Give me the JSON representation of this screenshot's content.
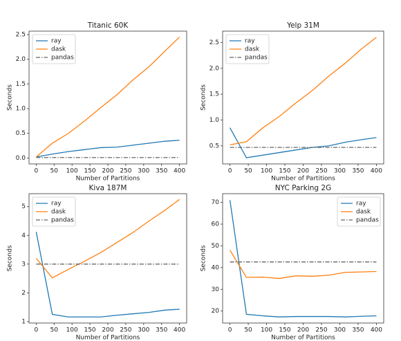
{
  "chart_data": [
    {
      "type": "line",
      "title": "Titanic 60K",
      "xlabel": "Number of Partitions",
      "ylabel": "Seconds",
      "legend": "upper left",
      "x": [
        0,
        45,
        90,
        135,
        180,
        225,
        270,
        315,
        360,
        400
      ],
      "xlim": [
        -20,
        420
      ],
      "xticks": [
        0,
        50,
        100,
        150,
        200,
        250,
        300,
        350,
        400
      ],
      "ylim": [
        -0.12,
        2.57
      ],
      "yticks": [
        {
          "value": 0,
          "label": "0.0"
        },
        {
          "value": 0.5,
          "label": "0.5"
        },
        {
          "value": 1,
          "label": "1.0"
        },
        {
          "value": 1.5,
          "label": "1.5"
        },
        {
          "value": 2,
          "label": "2.0"
        },
        {
          "value": 2.5,
          "label": "2.5"
        }
      ],
      "series": [
        {
          "name": "ray",
          "color": "#1f77b4",
          "linestyle": "solid",
          "values": [
            0.02,
            0.08,
            0.13,
            0.17,
            0.21,
            0.22,
            0.26,
            0.3,
            0.34,
            0.36
          ]
        },
        {
          "name": "dask",
          "color": "#ff7f0e",
          "linestyle": "solid",
          "values": [
            0.02,
            0.3,
            0.5,
            0.75,
            1.02,
            1.28,
            1.58,
            1.85,
            2.17,
            2.45
          ]
        },
        {
          "name": "pandas",
          "color": "#666666",
          "linestyle": "dashdot",
          "values": [
            0.01,
            0.01,
            0.01,
            0.01,
            0.01,
            0.01,
            0.01,
            0.01,
            0.01,
            0.01
          ]
        }
      ]
    },
    {
      "type": "line",
      "title": "Yelp 31M",
      "xlabel": "Number of Partitions",
      "ylabel": "Seconds",
      "legend": "upper left",
      "x": [
        0,
        45,
        90,
        135,
        180,
        225,
        270,
        315,
        360,
        400
      ],
      "xlim": [
        -20,
        420
      ],
      "xticks": [
        0,
        50,
        100,
        150,
        200,
        250,
        300,
        350,
        400
      ],
      "ylim": [
        0.15,
        2.72
      ],
      "yticks": [
        0.5,
        {
          "value": 1,
          "label": "1.0"
        },
        1.5,
        {
          "value": 2,
          "label": "2.0"
        },
        2.5
      ],
      "series": [
        {
          "name": "ray",
          "color": "#1f77b4",
          "linestyle": "solid",
          "values": [
            0.85,
            0.27,
            0.32,
            0.37,
            0.42,
            0.47,
            0.5,
            0.57,
            0.62,
            0.66
          ]
        },
        {
          "name": "dask",
          "color": "#ff7f0e",
          "linestyle": "solid",
          "values": [
            0.52,
            0.58,
            0.85,
            1.07,
            1.33,
            1.57,
            1.85,
            2.1,
            2.38,
            2.6
          ]
        },
        {
          "name": "pandas",
          "color": "#666666",
          "linestyle": "dashdot",
          "values": [
            0.47,
            0.47,
            0.47,
            0.47,
            0.47,
            0.47,
            0.47,
            0.47,
            0.47,
            0.47
          ]
        }
      ]
    },
    {
      "type": "line",
      "title": "Kiva 187M",
      "xlabel": "Number of Partitions",
      "ylabel": "Seconds",
      "legend": "upper left",
      "x": [
        0,
        45,
        90,
        135,
        180,
        225,
        270,
        315,
        360,
        400
      ],
      "xlim": [
        -20,
        420
      ],
      "xticks": [
        0,
        50,
        100,
        150,
        200,
        250,
        300,
        350,
        400
      ],
      "ylim": [
        0.95,
        5.45
      ],
      "yticks": [
        1,
        2,
        3,
        4,
        5
      ],
      "series": [
        {
          "name": "ray",
          "color": "#1f77b4",
          "linestyle": "solid",
          "values": [
            4.12,
            1.25,
            1.16,
            1.16,
            1.16,
            1.22,
            1.27,
            1.32,
            1.4,
            1.43
          ]
        },
        {
          "name": "dask",
          "color": "#ff7f0e",
          "linestyle": "solid",
          "values": [
            3.2,
            2.52,
            2.82,
            3.1,
            3.4,
            3.75,
            4.1,
            4.5,
            4.88,
            5.25
          ]
        },
        {
          "name": "pandas",
          "color": "#666666",
          "linestyle": "dashdot",
          "values": [
            3.0,
            3.0,
            3.0,
            3.0,
            3.0,
            3.0,
            3.0,
            3.0,
            3.0,
            3.0
          ]
        }
      ]
    },
    {
      "type": "line",
      "title": "NYC Parking 2G",
      "xlabel": "Number of Partitions",
      "ylabel": "Seconds",
      "legend": "upper right",
      "x": [
        0,
        45,
        90,
        135,
        180,
        225,
        270,
        315,
        360,
        400
      ],
      "xlim": [
        -20,
        420
      ],
      "xticks": [
        0,
        50,
        100,
        150,
        200,
        250,
        300,
        350,
        400
      ],
      "ylim": [
        14.5,
        74
      ],
      "yticks": [
        20,
        30,
        40,
        50,
        60,
        70
      ],
      "series": [
        {
          "name": "ray",
          "color": "#1f77b4",
          "linestyle": "solid",
          "values": [
            71,
            18.5,
            17.8,
            17.3,
            17.5,
            17.5,
            17.5,
            17.3,
            17.6,
            17.8
          ]
        },
        {
          "name": "dask",
          "color": "#ff7f0e",
          "linestyle": "solid",
          "values": [
            48,
            35.5,
            35.6,
            35,
            36.2,
            36,
            36.5,
            37.8,
            38,
            38.2
          ]
        },
        {
          "name": "pandas",
          "color": "#666666",
          "linestyle": "dashdot",
          "values": [
            42.6,
            42.6,
            42.6,
            42.6,
            42.6,
            42.6,
            42.6,
            42.6,
            42.6,
            42.6
          ]
        }
      ]
    }
  ]
}
